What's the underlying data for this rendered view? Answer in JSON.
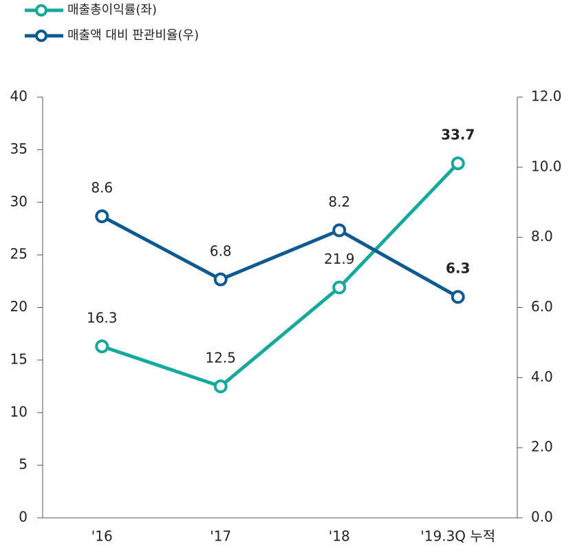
{
  "chart_data": {
    "type": "line",
    "categories": [
      "'16",
      "'17",
      "'18",
      "'19.3Q 누적"
    ],
    "series": [
      {
        "name": "매출총이익률(좌)",
        "color": "#16a99b",
        "values": [
          16.3,
          12.5,
          21.9,
          33.7
        ]
      },
      {
        "name": "매출액 대비 판관비율(우)",
        "color": "#0e5a8e",
        "values": [
          8.6,
          6.8,
          8.2,
          6.3
        ],
        "axis": "y2"
      }
    ],
    "ylim": [
      0,
      40
    ],
    "yticks": [
      0,
      5,
      10,
      15,
      20,
      25,
      30,
      35,
      40
    ],
    "y2lim": [
      0,
      12
    ],
    "y2ticks": [
      {
        "value": 0,
        "label": "0.0"
      },
      {
        "value": 2,
        "label": "2.0"
      },
      {
        "value": 4,
        "label": "4.0"
      },
      {
        "value": 6,
        "label": "6.0"
      },
      {
        "value": 8,
        "label": "8.0"
      },
      {
        "value": 10,
        "label": "10.0"
      },
      {
        "value": 12,
        "label": "12.0"
      }
    ],
    "grid": false,
    "legend": "top-left"
  }
}
